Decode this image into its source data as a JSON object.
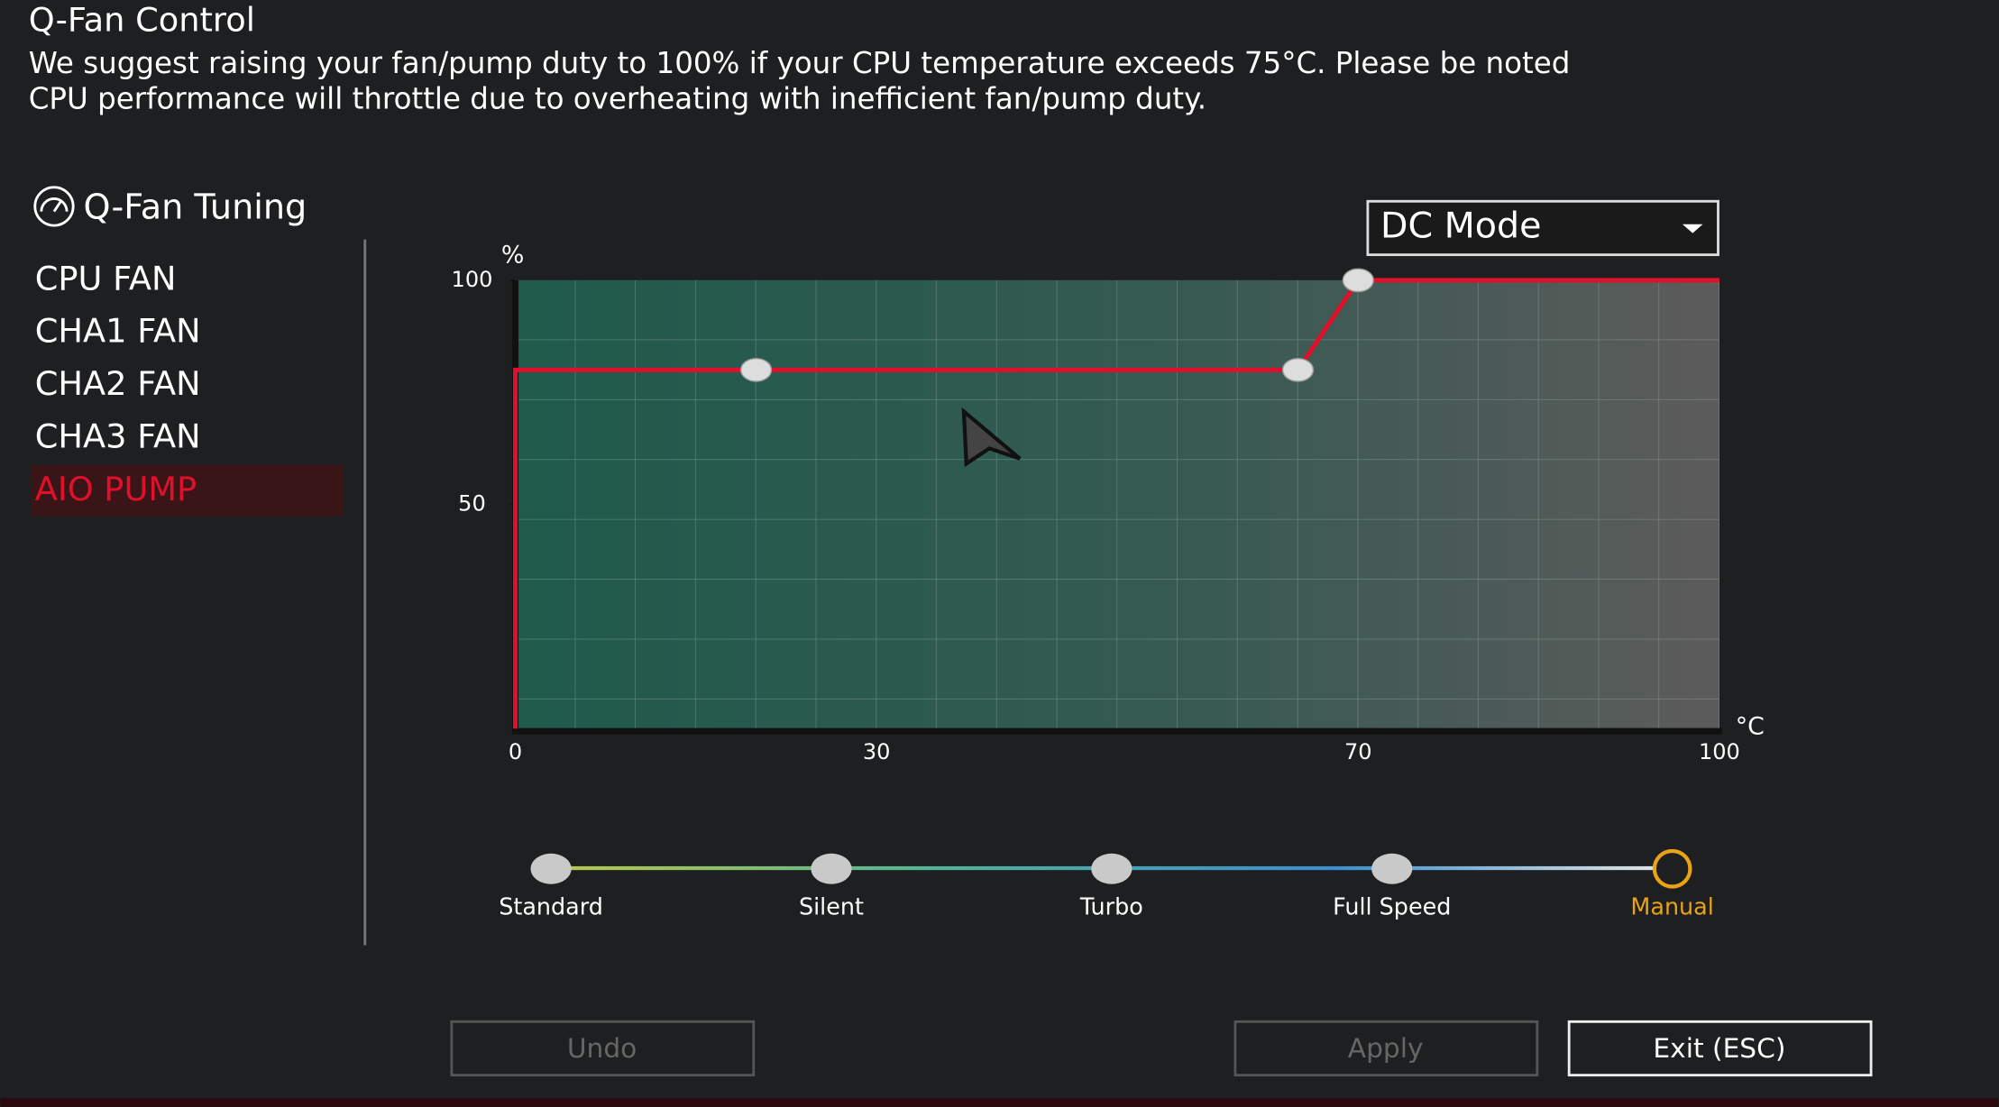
{
  "header": {
    "title": "Q-Fan Control",
    "notice_line1": "We suggest raising your fan/pump duty to 100% if your CPU temperature exceeds 75°C. Please be noted",
    "notice_line2": "CPU performance will throttle due to overheating with inefficient fan/pump duty."
  },
  "tuning": {
    "title": "Q-Fan Tuning",
    "fans": [
      "CPU FAN",
      "CHA1 FAN",
      "CHA2 FAN",
      "CHA3 FAN",
      "AIO PUMP"
    ],
    "selected_fan": "AIO PUMP"
  },
  "mode_dropdown": "DC Mode",
  "chart": {
    "type": "line",
    "y_unit": "%",
    "x_unit": "°C",
    "xlim": [
      0,
      100
    ],
    "ylim": [
      0,
      100
    ],
    "xticks": [
      0,
      30,
      70,
      100
    ],
    "yticks": [
      50,
      100
    ],
    "x": [
      20,
      65,
      70
    ],
    "y": [
      80,
      80,
      100
    ],
    "color": "#e0102a"
  },
  "presets": {
    "items": [
      "Standard",
      "Silent",
      "Turbo",
      "Full Speed",
      "Manual"
    ],
    "selected": "Manual"
  },
  "buttons": {
    "undo": "Undo",
    "apply": "Apply",
    "exit": "Exit (ESC)"
  }
}
